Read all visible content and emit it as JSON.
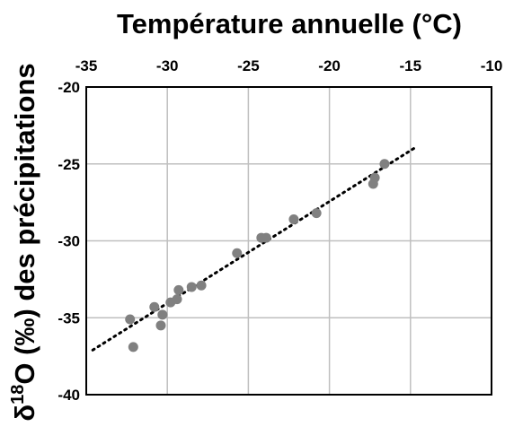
{
  "chart_data": {
    "type": "scatter",
    "title": "Température annuelle (°C)",
    "xlabel": "Température annuelle (°C)",
    "ylabel": "δ18O (‰) des précipitations",
    "xlim": [
      -35,
      -10
    ],
    "ylim": [
      -40,
      -20
    ],
    "x_ticks": [
      "-35",
      "-30",
      "-25",
      "-20",
      "-15",
      "-10"
    ],
    "y_ticks": [
      "-20",
      "-25",
      "-30",
      "-35",
      "-40"
    ],
    "x_axis_position": "top",
    "grid": true,
    "legend": "none",
    "series": [
      {
        "marker_color": "#808080",
        "points": [
          {
            "x": -32.3,
            "y": -35.1
          },
          {
            "x": -32.1,
            "y": -36.9
          },
          {
            "x": -30.8,
            "y": -34.3
          },
          {
            "x": -30.4,
            "y": -35.5
          },
          {
            "x": -30.3,
            "y": -34.8
          },
          {
            "x": -29.8,
            "y": -34.0
          },
          {
            "x": -29.4,
            "y": -33.8
          },
          {
            "x": -29.3,
            "y": -33.2
          },
          {
            "x": -28.5,
            "y": -33.0
          },
          {
            "x": -27.9,
            "y": -32.9
          },
          {
            "x": -25.7,
            "y": -30.8
          },
          {
            "x": -24.2,
            "y": -29.8
          },
          {
            "x": -23.9,
            "y": -29.8
          },
          {
            "x": -22.2,
            "y": -28.6
          },
          {
            "x": -20.8,
            "y": -28.2
          },
          {
            "x": -17.3,
            "y": -26.3
          },
          {
            "x": -17.2,
            "y": -25.9
          },
          {
            "x": -16.6,
            "y": -25.0
          }
        ]
      }
    ],
    "trendline": {
      "style": "dotted",
      "color": "#000000",
      "points": [
        {
          "x": -34.6,
          "y": -37.1
        },
        {
          "x": -14.8,
          "y": -24.0
        }
      ]
    }
  }
}
